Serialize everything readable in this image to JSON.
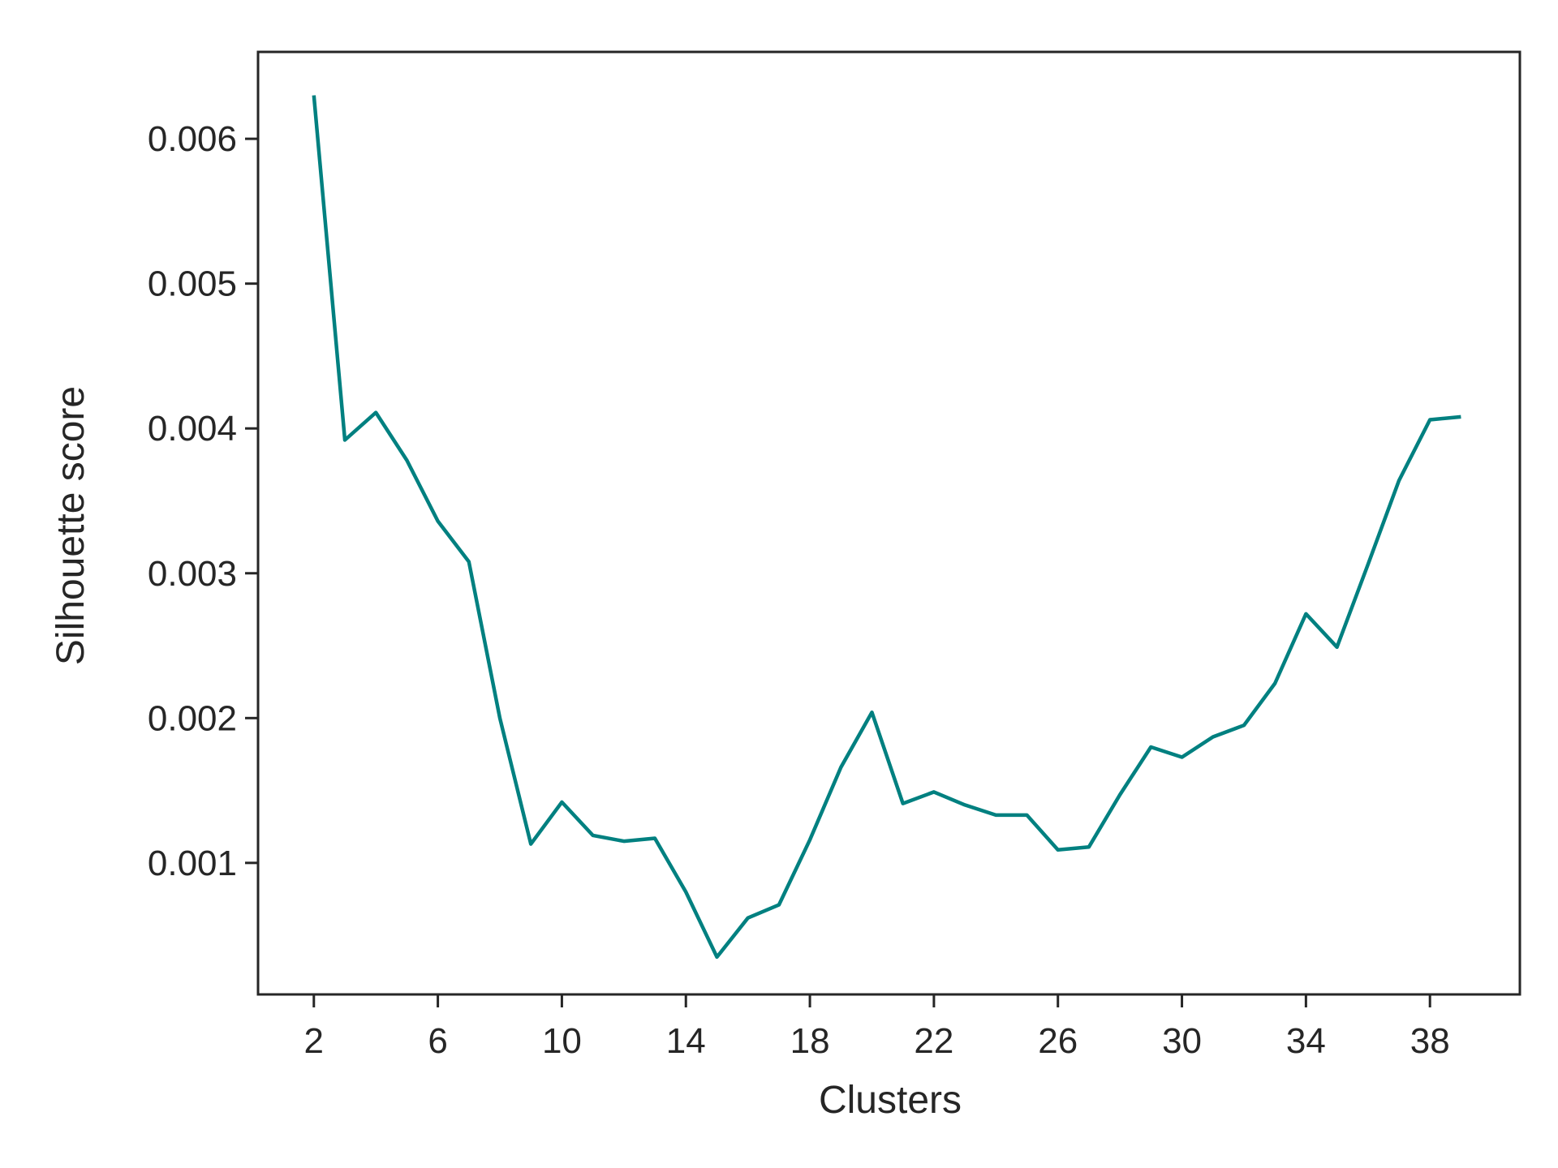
{
  "chart_data": {
    "type": "line",
    "title": "",
    "xlabel": "Clusters",
    "ylabel": "Silhouette score",
    "xlim": [
      0.2,
      40.9
    ],
    "ylim": [
      9.18e-05,
      0.0066
    ],
    "xticks": [
      2,
      6,
      10,
      14,
      18,
      22,
      26,
      30,
      34,
      38
    ],
    "xtick_labels": [
      "2",
      "6",
      "10",
      "14",
      "18",
      "22",
      "26",
      "30",
      "34",
      "38"
    ],
    "yticks": [
      0.001,
      0.002,
      0.003,
      0.004,
      0.005,
      0.006
    ],
    "ytick_labels": [
      "0.001",
      "0.002",
      "0.003",
      "0.004",
      "0.005",
      "0.006"
    ],
    "grid": false,
    "legend": "none",
    "line_color": "#008080",
    "axis_color": "#262626",
    "series": [
      {
        "x": [
          2,
          3,
          4,
          5,
          6,
          7,
          8,
          9,
          10,
          11,
          12,
          13,
          14,
          15,
          16,
          17,
          18,
          19,
          20,
          21,
          22,
          23,
          24,
          25,
          26,
          27,
          28,
          29,
          30,
          31,
          32,
          33,
          34,
          35,
          36,
          37,
          38,
          39
        ],
        "values": [
          0.0063,
          0.00392,
          0.00411,
          0.00378,
          0.00336,
          0.00308,
          0.002,
          0.00113,
          0.00142,
          0.00119,
          0.00115,
          0.00117,
          0.0008,
          0.00035,
          0.00062,
          0.00071,
          0.00116,
          0.00166,
          0.00204,
          0.00141,
          0.00149,
          0.0014,
          0.00133,
          0.00133,
          0.00109,
          0.00111,
          0.00147,
          0.0018,
          0.00173,
          0.00187,
          0.00195,
          0.00224,
          0.00272,
          0.00249,
          0.00306,
          0.00364,
          0.00406,
          0.00408
        ]
      }
    ]
  }
}
